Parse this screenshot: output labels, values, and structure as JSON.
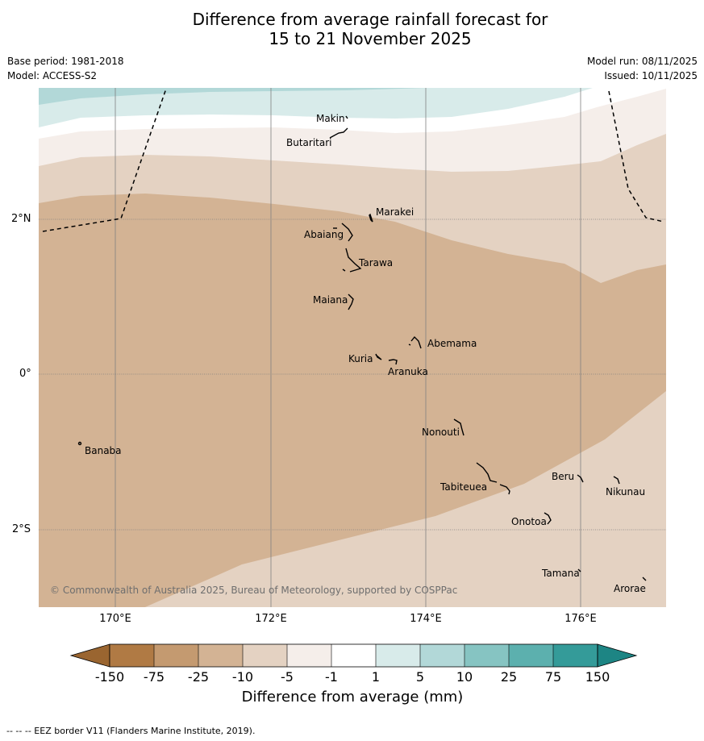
{
  "title": {
    "line1": "Difference from average rainfall forecast for",
    "line2": "15 to 21 November 2025"
  },
  "meta": {
    "base_period": "Base period: 1981-2018",
    "model": "Model: ACCESS-S2",
    "model_run": "Model run: 08/11/2025",
    "issued": "Issued: 10/11/2025"
  },
  "axes": {
    "lon_labels": [
      "170°E",
      "172°E",
      "174°E",
      "176°E"
    ],
    "lat_labels": [
      "2°N",
      "0°",
      "2°S"
    ]
  },
  "places": [
    "Makin",
    "Butaritari",
    "Marakei",
    "Abaiang",
    "Tarawa",
    "Maiana",
    "Abemama",
    "Kuria",
    "Aranuka",
    "Nonouti",
    "Banaba",
    "Beru",
    "Nikunau",
    "Tabiteuea",
    "Onotoa",
    "Tamana",
    "Arorae"
  ],
  "copyright": "© Commonwealth of Australia 2025, Bureau of Meteorology, supported by COSPPac",
  "colorbar": {
    "ticks": [
      "-150",
      "-75",
      "-25",
      "-10",
      "-5",
      "-1",
      "1",
      "5",
      "10",
      "25",
      "75",
      "150"
    ],
    "colors": [
      "#b07a44",
      "#c49a70",
      "#d3b394",
      "#e4d2c2",
      "#f5eeea",
      "#ffffff",
      "#d8ebea",
      "#b2d8d8",
      "#86c4c2",
      "#5cb0ae",
      "#349b99"
    ],
    "low_extend_color": "#9a6530",
    "high_extend_color": "#1d8584",
    "label": "Difference from average (mm)"
  },
  "footnote": "--  --  -- EEZ border V11 (Flanders Marine Institute, 2019)."
}
